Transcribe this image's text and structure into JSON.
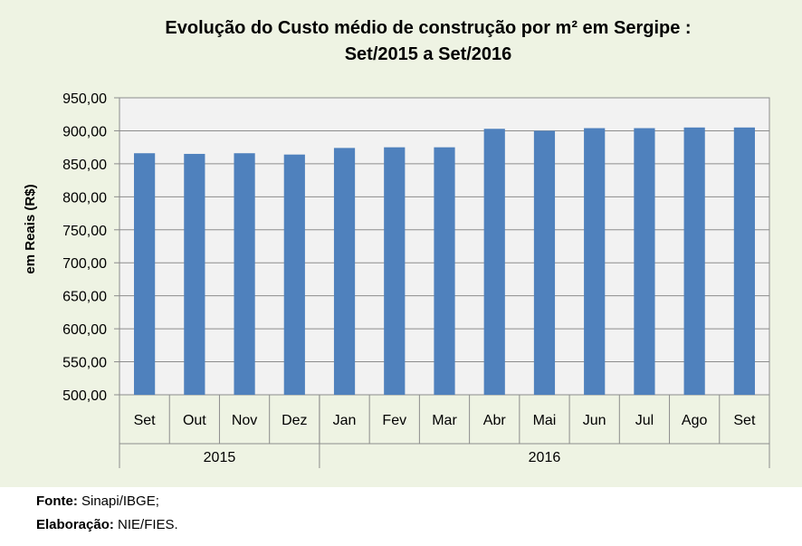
{
  "chart_data": {
    "type": "bar",
    "title_line1": "Evolução do Custo médio de construção por m² em Sergipe :",
    "title_line2": "Set/2015 a Set/2016",
    "ylabel": "em Reais (R$)",
    "xlabel": "",
    "ylim": [
      500,
      950
    ],
    "yticks": [
      "500,00",
      "550,00",
      "600,00",
      "650,00",
      "700,00",
      "750,00",
      "800,00",
      "850,00",
      "900,00",
      "950,00"
    ],
    "categories": [
      "Set",
      "Out",
      "Nov",
      "Dez",
      "Jan",
      "Fev",
      "Mar",
      "Abr",
      "Mai",
      "Jun",
      "Jul",
      "Ago",
      "Set"
    ],
    "groups": [
      {
        "label": "2015",
        "count": 4
      },
      {
        "label": "2016",
        "count": 9
      }
    ],
    "values": [
      866,
      865,
      866,
      864,
      874,
      875,
      875,
      903,
      900,
      904,
      904,
      905,
      905
    ],
    "bar_color": "#4f81bd",
    "plot_background": "#f2f2f2",
    "chart_background": "#eef3e3",
    "grid": true,
    "legend": "none"
  },
  "footer": {
    "source_label": "Fonte:",
    "source_value": "Sinapi/IBGE;",
    "credit_label": "Elaboração:",
    "credit_value": "NIE/FIES."
  }
}
